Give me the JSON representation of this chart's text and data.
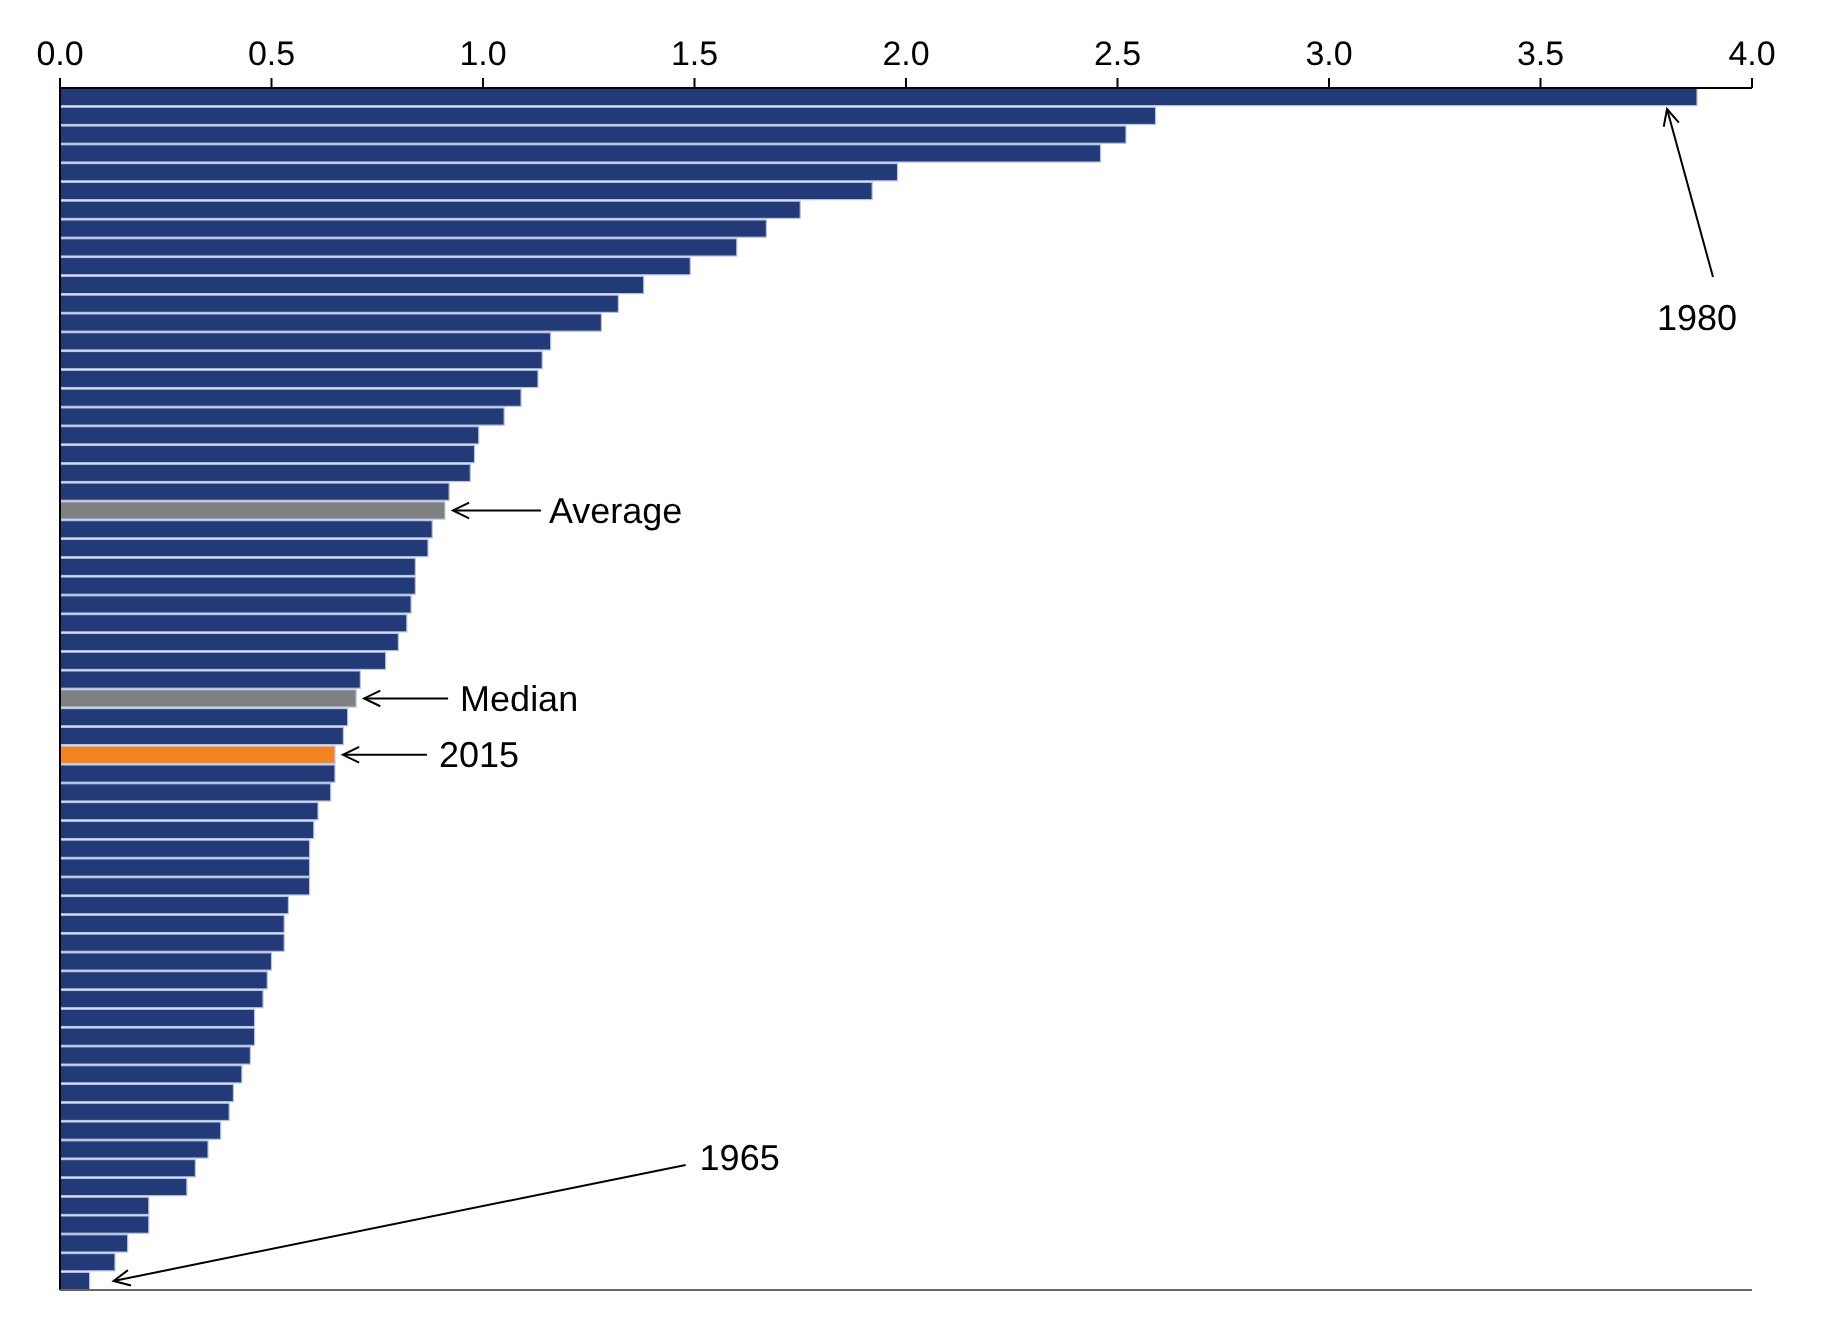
{
  "chart_data": {
    "type": "bar",
    "orientation": "horizontal",
    "categories": [
      null,
      null,
      null,
      null,
      null,
      null,
      null,
      null,
      null,
      null,
      null,
      null,
      null,
      null,
      null,
      null,
      null,
      null,
      null,
      null,
      null,
      null,
      null,
      null,
      null,
      null,
      null,
      null,
      null,
      null,
      null,
      null,
      null,
      null,
      null,
      null,
      null,
      null,
      null,
      null,
      null,
      null,
      null,
      null,
      null,
      null,
      null,
      null,
      null,
      null,
      null,
      null,
      null,
      null,
      null,
      null,
      null,
      null,
      null,
      null,
      null,
      null,
      null,
      null
    ],
    "values": [
      3.87,
      2.59,
      2.52,
      2.46,
      1.98,
      1.92,
      1.75,
      1.67,
      1.6,
      1.49,
      1.38,
      1.32,
      1.28,
      1.16,
      1.14,
      1.13,
      1.09,
      1.05,
      0.99,
      0.98,
      0.97,
      0.92,
      0.91,
      0.88,
      0.87,
      0.84,
      0.84,
      0.83,
      0.82,
      0.8,
      0.77,
      0.71,
      0.7,
      0.68,
      0.67,
      0.65,
      0.65,
      0.64,
      0.61,
      0.6,
      0.59,
      0.59,
      0.59,
      0.54,
      0.53,
      0.53,
      0.5,
      0.49,
      0.48,
      0.46,
      0.46,
      0.45,
      0.43,
      0.41,
      0.4,
      0.38,
      0.35,
      0.32,
      0.3,
      0.21,
      0.21,
      0.16,
      0.13,
      0.07
    ],
    "colors": [
      "#223b78",
      "#223b78",
      "#223b78",
      "#223b78",
      "#223b78",
      "#223b78",
      "#223b78",
      "#223b78",
      "#223b78",
      "#223b78",
      "#223b78",
      "#223b78",
      "#223b78",
      "#223b78",
      "#223b78",
      "#223b78",
      "#223b78",
      "#223b78",
      "#223b78",
      "#223b78",
      "#223b78",
      "#223b78",
      "#808080",
      "#223b78",
      "#223b78",
      "#223b78",
      "#223b78",
      "#223b78",
      "#223b78",
      "#223b78",
      "#223b78",
      "#223b78",
      "#808080",
      "#223b78",
      "#223b78",
      "#f5821f",
      "#223b78",
      "#223b78",
      "#223b78",
      "#223b78",
      "#223b78",
      "#223b78",
      "#223b78",
      "#223b78",
      "#223b78",
      "#223b78",
      "#223b78",
      "#223b78",
      "#223b78",
      "#223b78",
      "#223b78",
      "#223b78",
      "#223b78",
      "#223b78",
      "#223b78",
      "#223b78",
      "#223b78",
      "#223b78",
      "#223b78",
      "#223b78",
      "#223b78",
      "#223b78",
      "#223b78",
      "#223b78"
    ],
    "xlim": [
      0,
      4
    ],
    "xticks": [
      {
        "value": 0,
        "label": "0.0"
      },
      {
        "value": 0.5,
        "label": "0.5"
      },
      {
        "value": 1,
        "label": "1.0"
      },
      {
        "value": 1.5,
        "label": "1.5"
      },
      {
        "value": 2,
        "label": "2.0"
      },
      {
        "value": 2.5,
        "label": "2.5"
      },
      {
        "value": 3,
        "label": "3.0"
      },
      {
        "value": 3.5,
        "label": "3.5"
      },
      {
        "value": 4,
        "label": "4.0"
      }
    ],
    "annotations": [
      "1980",
      "Average",
      "Median",
      "2015",
      "1965"
    ]
  }
}
